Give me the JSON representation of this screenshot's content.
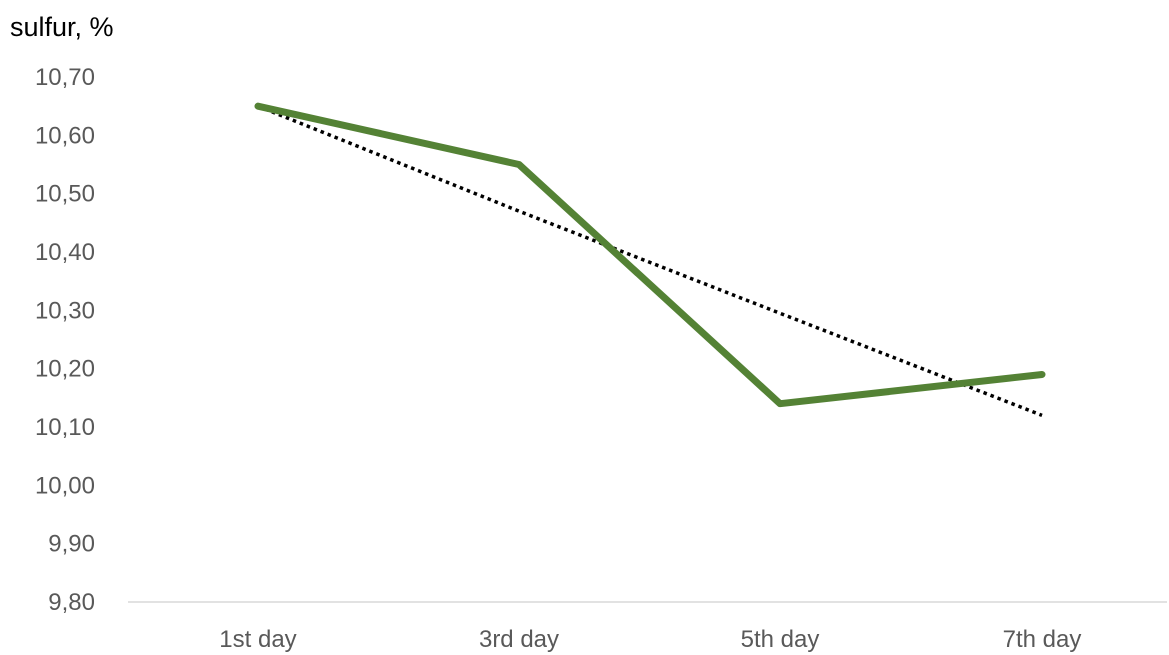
{
  "chart_data": {
    "type": "line",
    "title": "",
    "xlabel": "",
    "ylabel": "sulfur, %",
    "categories": [
      "1st day",
      "3rd day",
      "5th day",
      "7th day"
    ],
    "yticks": [
      "9,80",
      "9,90",
      "10,00",
      "10,10",
      "10,20",
      "10,30",
      "10,40",
      "10,50",
      "10,60",
      "10,70"
    ],
    "ylim": [
      9.8,
      10.7
    ],
    "grid": false,
    "legend": "none",
    "series": [
      {
        "values": [
          10.65,
          10.55,
          10.14,
          10.19
        ],
        "color": "#548235",
        "style": "solid"
      }
    ],
    "trendline": {
      "type": "linear",
      "values": [
        10.65,
        10.47,
        10.295,
        10.12
      ],
      "color": "#000000",
      "style": "dotted"
    }
  }
}
